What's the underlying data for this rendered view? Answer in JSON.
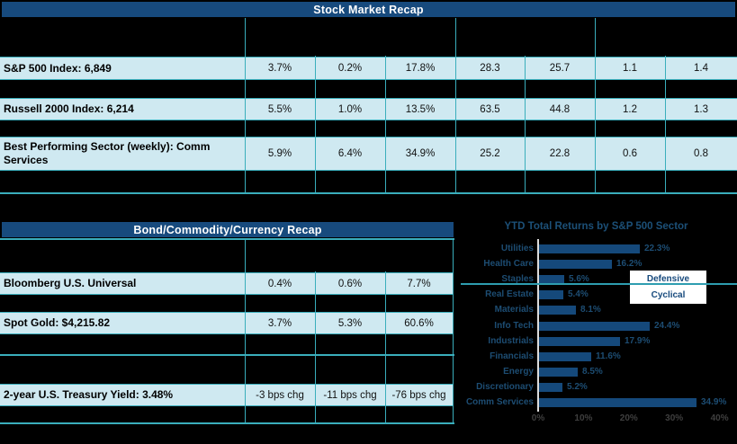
{
  "colors": {
    "header_navy": "#174a7d",
    "row_fill_blue": "#cfe9f1",
    "grid_teal": "#3aaebc",
    "bar_navy": "#15497b",
    "chart_text_navy": "#1d4d73",
    "tick_gray": "#3f3f3f",
    "background": "#000000"
  },
  "stock_table": {
    "title": "Stock Market Recap",
    "rows": [
      {
        "label": "S&P 500 Index: 6,849",
        "values": [
          "3.7%",
          "0.2%",
          "17.8%",
          "28.3",
          "25.7",
          "1.1",
          "1.4"
        ]
      },
      {
        "label": "Russell 2000 Index: 6,214",
        "values": [
          "5.5%",
          "1.0%",
          "13.5%",
          "63.5",
          "44.8",
          "1.2",
          "1.3"
        ]
      },
      {
        "label": "Best Performing Sector (weekly): Comm Services",
        "values": [
          "5.9%",
          "6.4%",
          "34.9%",
          "25.2",
          "22.8",
          "0.6",
          "0.8"
        ]
      }
    ]
  },
  "bond_table": {
    "title": "Bond/Commodity/Currency Recap",
    "rows": [
      {
        "label": "Bloomberg U.S. Universal",
        "values": [
          "0.4%",
          "0.6%",
          "7.7%"
        ]
      },
      {
        "label": "Spot Gold: $4,215.82",
        "values": [
          "3.7%",
          "5.3%",
          "60.6%"
        ]
      },
      {
        "label": "2-year U.S. Treasury Yield: 3.48%",
        "values": [
          "-3 bps chg",
          "-11 bps chg",
          "-76 bps chg"
        ]
      }
    ]
  },
  "chart_data": {
    "type": "bar",
    "orientation": "horizontal",
    "title": "YTD Total Returns by S&P 500 Sector",
    "categories": [
      "Utilities",
      "Health Care",
      "Staples",
      "Real Estate",
      "Materials",
      "Info Tech",
      "Industrials",
      "Financials",
      "Energy",
      "Discretionary",
      "Comm Services"
    ],
    "values": [
      22.3,
      16.2,
      5.6,
      5.4,
      8.1,
      24.4,
      17.9,
      11.6,
      8.5,
      5.2,
      34.9
    ],
    "value_labels": [
      "22.3%",
      "16.2%",
      "5.6%",
      "5.4%",
      "8.1%",
      "24.4%",
      "17.9%",
      "11.6%",
      "8.5%",
      "5.2%",
      "34.9%"
    ],
    "xlim": [
      0,
      40
    ],
    "x_ticks": [
      "0%",
      "10%",
      "20%",
      "30%",
      "40%"
    ],
    "legend": [
      "Defensive",
      "Cyclical"
    ],
    "legend_position": "right-overlay",
    "group_divider_note": "teal line separates Defensive sectors (above) from Cyclical sectors (below)",
    "grid": false
  }
}
